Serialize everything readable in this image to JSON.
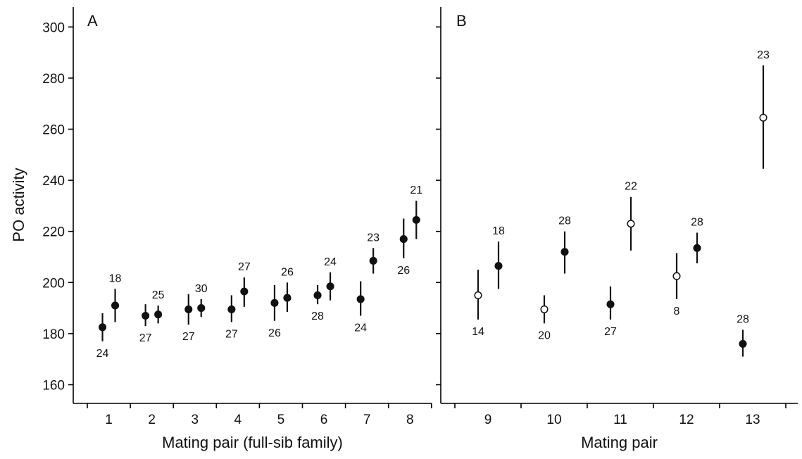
{
  "chart_data": {
    "type": "scatter",
    "ylabel": "PO activity",
    "ylim": [
      155,
      308
    ],
    "yticks": [
      160,
      180,
      200,
      220,
      240,
      260,
      280,
      300
    ],
    "panels": [
      {
        "letter": "A",
        "xlabel": "Mating pair (full-sib family)",
        "categories": [
          "1",
          "2",
          "3",
          "4",
          "5",
          "6",
          "7",
          "8"
        ],
        "points": [
          {
            "pair": "1",
            "slot": 0,
            "y": 182.5,
            "lo": 177,
            "hi": 188,
            "label": "24",
            "label_pos": "below",
            "filled": true
          },
          {
            "pair": "1",
            "slot": 1,
            "y": 191,
            "lo": 184.5,
            "hi": 197.5,
            "label": "18",
            "label_pos": "above",
            "filled": true
          },
          {
            "pair": "2",
            "slot": 0,
            "y": 187,
            "lo": 183,
            "hi": 191.5,
            "label": "27",
            "label_pos": "below",
            "filled": true
          },
          {
            "pair": "2",
            "slot": 1,
            "y": 187.5,
            "lo": 184,
            "hi": 191,
            "label": "25",
            "label_pos": "above",
            "filled": true
          },
          {
            "pair": "3",
            "slot": 0,
            "y": 189.5,
            "lo": 183.5,
            "hi": 195.5,
            "label": "27",
            "label_pos": "below",
            "filled": true
          },
          {
            "pair": "3",
            "slot": 1,
            "y": 190,
            "lo": 186.5,
            "hi": 193.5,
            "label": "30",
            "label_pos": "above",
            "filled": true
          },
          {
            "pair": "4",
            "slot": 0,
            "y": 189.5,
            "lo": 184.5,
            "hi": 195,
            "label": "27",
            "label_pos": "below",
            "filled": true
          },
          {
            "pair": "4",
            "slot": 1,
            "y": 196.5,
            "lo": 190.5,
            "hi": 202,
            "label": "27",
            "label_pos": "above",
            "filled": true
          },
          {
            "pair": "5",
            "slot": 0,
            "y": 192,
            "lo": 185,
            "hi": 199,
            "label": "26",
            "label_pos": "below",
            "filled": true
          },
          {
            "pair": "5",
            "slot": 1,
            "y": 194,
            "lo": 188.5,
            "hi": 200,
            "label": "26",
            "label_pos": "above",
            "filled": true
          },
          {
            "pair": "6",
            "slot": 0,
            "y": 195,
            "lo": 191.5,
            "hi": 199,
            "label": "28",
            "label_pos": "below",
            "filled": true
          },
          {
            "pair": "6",
            "slot": 1,
            "y": 198.5,
            "lo": 193,
            "hi": 204,
            "label": "24",
            "label_pos": "above",
            "filled": true
          },
          {
            "pair": "7",
            "slot": 0,
            "y": 193.5,
            "lo": 187,
            "hi": 200.5,
            "label": "24",
            "label_pos": "below",
            "filled": true
          },
          {
            "pair": "7",
            "slot": 1,
            "y": 208.5,
            "lo": 203.5,
            "hi": 213.5,
            "label": "23",
            "label_pos": "above",
            "filled": true
          },
          {
            "pair": "8",
            "slot": 0,
            "y": 217,
            "lo": 209.5,
            "hi": 225,
            "label": "26",
            "label_pos": "below",
            "filled": true
          },
          {
            "pair": "8",
            "slot": 1,
            "y": 224.5,
            "lo": 217,
            "hi": 232,
            "label": "21",
            "label_pos": "above",
            "filled": true
          }
        ]
      },
      {
        "letter": "B",
        "xlabel": "Mating pair",
        "categories": [
          "9",
          "10",
          "11",
          "12",
          "13"
        ],
        "points": [
          {
            "pair": "9",
            "slot": 0,
            "y": 195,
            "lo": 185.5,
            "hi": 205,
            "label": "14",
            "label_pos": "below",
            "filled": false
          },
          {
            "pair": "9",
            "slot": 1,
            "y": 206.5,
            "lo": 197.5,
            "hi": 216,
            "label": "18",
            "label_pos": "above",
            "filled": true
          },
          {
            "pair": "10",
            "slot": 0,
            "y": 189.5,
            "lo": 184,
            "hi": 195,
            "label": "20",
            "label_pos": "below",
            "filled": false
          },
          {
            "pair": "10",
            "slot": 1,
            "y": 212,
            "lo": 203.5,
            "hi": 220,
            "label": "28",
            "label_pos": "above",
            "filled": true
          },
          {
            "pair": "11",
            "slot": 0,
            "y": 191.5,
            "lo": 185.5,
            "hi": 198.5,
            "label": "27",
            "label_pos": "below",
            "filled": true
          },
          {
            "pair": "11",
            "slot": 1,
            "y": 223,
            "lo": 212.5,
            "hi": 233.5,
            "label": "22",
            "label_pos": "above",
            "filled": false
          },
          {
            "pair": "12",
            "slot": 0,
            "y": 202.5,
            "lo": 193.5,
            "hi": 211.5,
            "label": "8",
            "label_pos": "below",
            "filled": false
          },
          {
            "pair": "12",
            "slot": 1,
            "y": 213.5,
            "lo": 207.5,
            "hi": 219.5,
            "label": "28",
            "label_pos": "above",
            "filled": true
          },
          {
            "pair": "13",
            "slot": 0,
            "y": 176,
            "lo": 171,
            "hi": 181.5,
            "label": "28",
            "label_pos": "above",
            "filled": true
          },
          {
            "pair": "13",
            "slot": 1,
            "y": 264.5,
            "lo": 244.5,
            "hi": 285,
            "label": "23",
            "label_pos": "above",
            "filled": false
          }
        ]
      }
    ]
  }
}
